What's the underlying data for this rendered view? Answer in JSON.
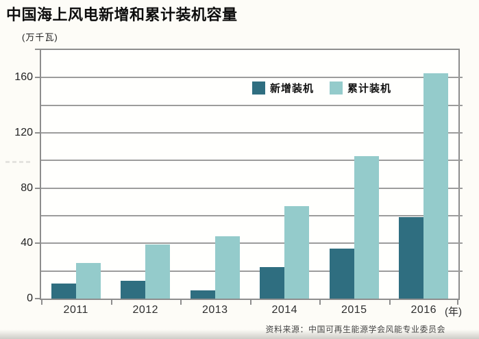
{
  "page": {
    "source_note": "资料来源：中国可再生能源学会风能专业委员会"
  },
  "chart_data": {
    "type": "bar",
    "title": "中国海上风电新增和累计装机容量",
    "y_unit_label": "(万千瓦)",
    "x_unit_label": "(年)",
    "categories": [
      "2011",
      "2012",
      "2013",
      "2014",
      "2015",
      "2016"
    ],
    "series": [
      {
        "name": "新增装机",
        "color": "#2f6e80",
        "values": [
          11,
          13,
          6,
          23,
          36,
          59
        ]
      },
      {
        "name": "累计装机",
        "color": "#94cbcb",
        "values": [
          26,
          39,
          45,
          67,
          103,
          163
        ]
      }
    ],
    "ylim": [
      0,
      180
    ],
    "grid_step": 20,
    "label_step": 40,
    "ytick_labels": [
      "0",
      "40",
      "80",
      "120",
      "160"
    ],
    "ytick_values": [
      0,
      40,
      80,
      120,
      160
    ],
    "grid": true,
    "legend_position": "inside-top-center",
    "colors": {
      "axis": "#8d8d8d",
      "grid": "#9c9c9c",
      "background": "#fdfcf7",
      "text": "#111111"
    }
  }
}
